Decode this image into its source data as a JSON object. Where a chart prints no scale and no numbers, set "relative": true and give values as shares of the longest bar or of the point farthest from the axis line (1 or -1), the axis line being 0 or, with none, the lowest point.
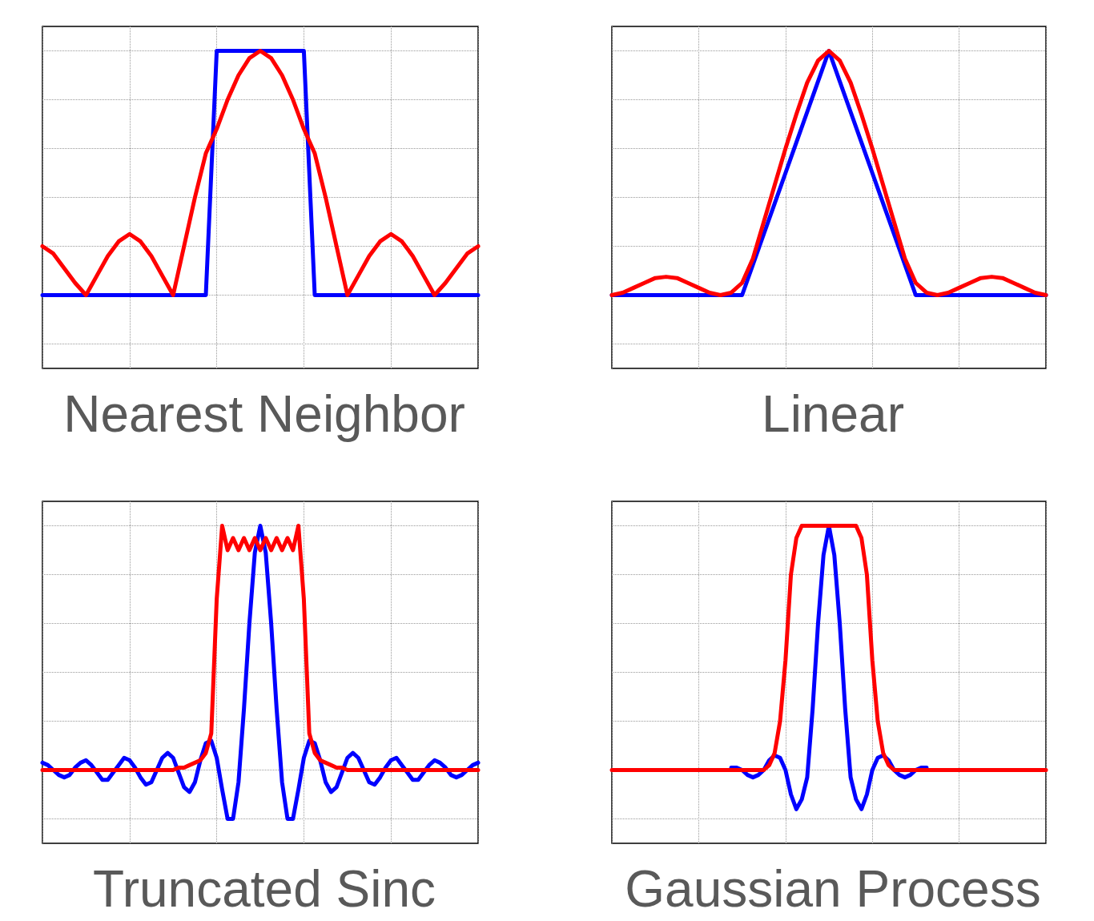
{
  "chart_data": [
    {
      "type": "line",
      "title": "Nearest Neighbor",
      "relative": true,
      "grid": true,
      "marker": "none",
      "line_style": "solid",
      "categories": [
        null,
        null,
        null,
        null,
        null,
        null,
        null,
        null,
        null,
        null,
        null,
        null,
        null,
        null,
        null,
        null,
        null,
        null,
        null,
        null,
        null,
        null,
        null,
        null,
        null,
        null,
        null,
        null,
        null,
        null,
        null,
        null,
        null,
        null,
        null,
        null,
        null,
        null,
        null,
        null,
        null
      ],
      "series": [
        {
          "color": "#0000ff",
          "values": [
            0,
            0,
            0,
            0,
            0,
            0,
            0,
            0,
            0,
            0,
            0,
            0,
            0,
            0,
            0,
            0,
            1,
            1,
            1,
            1,
            1,
            1,
            1,
            1,
            1,
            0,
            0,
            0,
            0,
            0,
            0,
            0,
            0,
            0,
            0,
            0,
            0,
            0,
            0,
            0,
            0
          ]
        },
        {
          "color": "#ff0000",
          "values": [
            0.2,
            0.17,
            0.11,
            0.05,
            0,
            0.08,
            0.16,
            0.22,
            0.25,
            0.22,
            0.16,
            0.08,
            0,
            0.2,
            0.4,
            0.58,
            0.68,
            0.8,
            0.9,
            0.97,
            1,
            0.97,
            0.9,
            0.8,
            0.68,
            0.58,
            0.4,
            0.2,
            0,
            0.08,
            0.16,
            0.22,
            0.25,
            0.22,
            0.16,
            0.08,
            0,
            0.05,
            0.11,
            0.17,
            0.2
          ]
        }
      ]
    },
    {
      "type": "line",
      "title": "Linear",
      "relative": true,
      "grid": true,
      "marker": "none",
      "line_style": "solid",
      "categories": [
        null,
        null,
        null,
        null,
        null,
        null,
        null,
        null,
        null,
        null,
        null,
        null,
        null,
        null,
        null,
        null,
        null,
        null,
        null,
        null,
        null,
        null,
        null,
        null,
        null,
        null,
        null,
        null,
        null,
        null,
        null,
        null,
        null,
        null,
        null,
        null,
        null,
        null,
        null,
        null,
        null
      ],
      "series": [
        {
          "color": "#0000ff",
          "values": [
            0,
            0,
            0,
            0,
            0,
            0,
            0,
            0,
            0,
            0,
            0,
            0,
            0,
            0.125,
            0.25,
            0.375,
            0.5,
            0.625,
            0.75,
            0.875,
            1,
            0.875,
            0.75,
            0.625,
            0.5,
            0.375,
            0.25,
            0.125,
            0,
            0,
            0,
            0,
            0,
            0,
            0,
            0,
            0,
            0,
            0,
            0,
            0
          ]
        },
        {
          "color": "#ff0000",
          "values": [
            0,
            0.01,
            0.03,
            0.05,
            0.07,
            0.075,
            0.07,
            0.05,
            0.03,
            0.01,
            0,
            0.01,
            0.05,
            0.15,
            0.3,
            0.45,
            0.6,
            0.74,
            0.87,
            0.96,
            1,
            0.96,
            0.87,
            0.74,
            0.6,
            0.45,
            0.3,
            0.15,
            0.05,
            0.01,
            0,
            0.01,
            0.03,
            0.05,
            0.07,
            0.075,
            0.07,
            0.05,
            0.03,
            0.01,
            0
          ]
        }
      ]
    },
    {
      "type": "line",
      "title": "Truncated Sinc",
      "relative": true,
      "grid": true,
      "marker": "none",
      "line_style": "solid",
      "categories": [
        null,
        null,
        null,
        null,
        null,
        null,
        null,
        null,
        null,
        null,
        null,
        null,
        null,
        null,
        null,
        null,
        null,
        null,
        null,
        null,
        null,
        null,
        null,
        null,
        null,
        null,
        null,
        null,
        null,
        null,
        null,
        null,
        null,
        null,
        null,
        null,
        null,
        null,
        null,
        null,
        null,
        null,
        null,
        null,
        null,
        null,
        null,
        null,
        null,
        null,
        null,
        null,
        null,
        null,
        null,
        null,
        null,
        null,
        null,
        null,
        null,
        null,
        null,
        null,
        null,
        null,
        null,
        null,
        null,
        null,
        null,
        null,
        null,
        null,
        null,
        null,
        null,
        null,
        null,
        null,
        null
      ],
      "series": [
        {
          "color": "#0000ff",
          "values": [
            0.03,
            0.02,
            0,
            -0.02,
            -0.03,
            -0.02,
            0.01,
            0.03,
            0.04,
            0.02,
            -0.01,
            -0.04,
            -0.04,
            -0.01,
            0.02,
            0.05,
            0.04,
            0.01,
            -0.03,
            -0.06,
            -0.05,
            0,
            0.05,
            0.07,
            0.05,
            -0.01,
            -0.07,
            -0.09,
            -0.05,
            0.04,
            0.11,
            0.12,
            0.05,
            -0.08,
            -0.2,
            -0.2,
            -0.05,
            0.25,
            0.6,
            0.89,
            1,
            0.89,
            0.6,
            0.25,
            -0.05,
            -0.2,
            -0.2,
            -0.08,
            0.05,
            0.12,
            0.11,
            0.04,
            -0.05,
            -0.09,
            -0.07,
            -0.01,
            0.05,
            0.07,
            0.05,
            0,
            -0.05,
            -0.06,
            -0.03,
            0.01,
            0.04,
            0.05,
            0.02,
            -0.01,
            -0.04,
            -0.04,
            -0.01,
            0.02,
            0.04,
            0.03,
            0.01,
            -0.02,
            -0.03,
            -0.02,
            0,
            0.02,
            0.03
          ]
        },
        {
          "color": "#ff0000",
          "values": [
            0,
            0,
            0,
            0,
            0,
            0,
            0,
            0,
            0,
            0,
            0,
            0,
            0,
            0,
            0,
            0,
            0,
            0,
            0,
            0,
            0,
            0,
            0,
            0,
            0,
            0.01,
            0.01,
            0.02,
            0.03,
            0.04,
            0.07,
            0.15,
            0.7,
            1,
            0.9,
            0.95,
            0.9,
            0.95,
            0.9,
            0.95,
            0.9,
            0.95,
            0.9,
            0.95,
            0.9,
            0.95,
            0.9,
            1,
            0.7,
            0.15,
            0.07,
            0.04,
            0.03,
            0.02,
            0.01,
            0.01,
            0,
            0,
            0,
            0,
            0,
            0,
            0,
            0,
            0,
            0,
            0,
            0,
            0,
            0,
            0,
            0,
            0,
            0,
            0,
            0,
            0,
            0,
            0,
            0,
            0
          ]
        }
      ]
    },
    {
      "type": "line",
      "title": "Gaussian Process",
      "relative": true,
      "grid": true,
      "marker": "none",
      "line_style": "solid",
      "categories": [
        null,
        null,
        null,
        null,
        null,
        null,
        null,
        null,
        null,
        null,
        null,
        null,
        null,
        null,
        null,
        null,
        null,
        null,
        null,
        null,
        null,
        null,
        null,
        null,
        null,
        null,
        null,
        null,
        null,
        null,
        null,
        null,
        null,
        null,
        null,
        null,
        null,
        null,
        null,
        null,
        null,
        null,
        null,
        null,
        null,
        null,
        null,
        null,
        null,
        null,
        null,
        null,
        null,
        null,
        null,
        null,
        null,
        null,
        null,
        null,
        null,
        null,
        null,
        null,
        null,
        null,
        null,
        null,
        null,
        null,
        null,
        null,
        null,
        null,
        null,
        null,
        null,
        null,
        null,
        null,
        null
      ],
      "series": [
        {
          "color": "#0000ff",
          "values": [
            null,
            null,
            null,
            null,
            null,
            null,
            null,
            null,
            null,
            null,
            null,
            null,
            null,
            null,
            null,
            null,
            null,
            null,
            null,
            null,
            null,
            null,
            0.01,
            0.01,
            0,
            -0.02,
            -0.03,
            -0.02,
            0,
            0.04,
            0.06,
            0.05,
            0,
            -0.1,
            -0.16,
            -0.12,
            -0.03,
            0.25,
            0.6,
            0.88,
            1,
            0.88,
            0.6,
            0.25,
            -0.03,
            -0.12,
            -0.16,
            -0.1,
            0,
            0.05,
            0.06,
            0.04,
            0,
            -0.02,
            -0.03,
            -0.02,
            0,
            0.01,
            0.01,
            null,
            null,
            null,
            null,
            null,
            null,
            null,
            null,
            null,
            null,
            null,
            null,
            null,
            null,
            null,
            null,
            null,
            null,
            null,
            null,
            null,
            null
          ]
        },
        {
          "color": "#ff0000",
          "values": [
            0,
            0,
            0,
            0,
            0,
            0,
            0,
            0,
            0,
            0,
            0,
            0,
            0,
            0,
            0,
            0,
            0,
            0,
            0,
            0,
            0,
            0,
            0,
            0,
            0,
            0,
            0,
            0,
            0,
            0.02,
            0.07,
            0.2,
            0.45,
            0.8,
            0.95,
            1,
            1,
            1,
            1,
            1,
            1,
            1,
            1,
            1,
            1,
            1,
            0.95,
            0.8,
            0.45,
            0.2,
            0.07,
            0.02,
            0,
            0,
            0,
            0,
            0,
            0,
            0,
            0,
            0,
            0,
            0,
            0,
            0,
            0,
            0,
            0,
            0,
            0,
            0,
            0,
            0,
            0,
            0,
            0,
            0,
            0,
            0,
            0,
            0
          ]
        }
      ]
    }
  ]
}
